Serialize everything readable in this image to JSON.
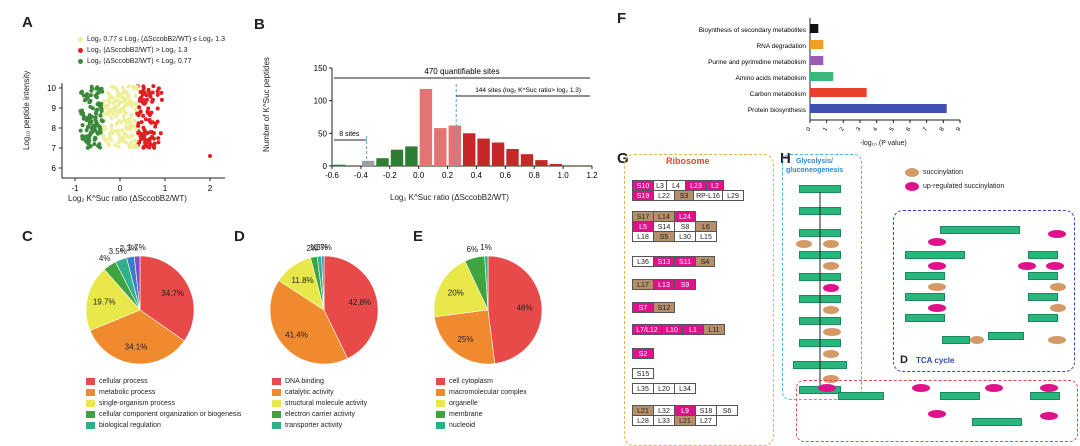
{
  "panels": {
    "A": "A",
    "B": "B",
    "C": "C",
    "D": "D",
    "E": "E",
    "F": "F",
    "G": "G",
    "H": "H"
  },
  "panelA": {
    "legend": [
      {
        "text": "Log₂ 0.77 ≤ Log₂ (ΔSccobB2/WT) ≤ Log₂ 1.3",
        "color": "#efef9a"
      },
      {
        "text": "Log₂ (ΔSccobB2/WT) > Log₂ 1.3",
        "color": "#e02020"
      },
      {
        "text": "Log₂ (ΔSccobB2/WT) < Log₂ 0.77",
        "color": "#3a8a3a"
      }
    ],
    "ylabel": "Log₁₀ peptide intensity",
    "xlabel": "Log₂ K^Suc ratio (ΔSccobB2/WT)",
    "xticks": [
      "-1",
      "0",
      "1",
      "2"
    ],
    "yticks": [
      "10",
      "9",
      "8",
      "7",
      "6"
    ]
  },
  "chart_data": [
    {
      "type": "bar",
      "title": "",
      "annotation_total": "470 quantifiable sites",
      "annotation_right": "144 sites (log₂ K^Suc ratio> log₂ 1.3)",
      "annotation_left": "8 sites",
      "xlabel": "Log₂ K^Suc ratio (ΔSccobB2/WT)",
      "ylabel": "Number of K^Suc peptides",
      "xticks": [
        "-0.6",
        "-0.4",
        "-0.2",
        "0.0",
        "0.2",
        "0.4",
        "0.6",
        "0.8",
        "1.0",
        "1.2"
      ],
      "yticks": [
        "0",
        "50",
        "100",
        "150"
      ],
      "ylim": [
        0,
        150
      ],
      "x": [
        -0.55,
        -0.45,
        -0.35,
        -0.25,
        -0.15,
        -0.05,
        0.05,
        0.15,
        0.25,
        0.35,
        0.45,
        0.55,
        0.65,
        0.75,
        0.85,
        0.95,
        1.05,
        1.15
      ],
      "values": [
        2,
        1,
        8,
        12,
        25,
        30,
        118,
        58,
        62,
        50,
        42,
        36,
        26,
        18,
        9,
        3,
        1,
        1
      ],
      "colors": [
        "#2e7d32",
        "#2e7d32",
        "#9e9e9e",
        "#2e7d32",
        "#2e7d32",
        "#2e7d32",
        "#e57373",
        "#e57373",
        "#e57373",
        "#c62828",
        "#c62828",
        "#c62828",
        "#c62828",
        "#c62828",
        "#c62828",
        "#c62828",
        "#c62828",
        "#c62828"
      ]
    },
    {
      "type": "pie",
      "name": "C",
      "labels": [
        "cellular process",
        "metabolic process",
        "single-organism process",
        "cellular component organization or biogenesis",
        "biological regulation",
        "other1",
        "other2"
      ],
      "values": [
        34.7,
        34.1,
        19.7,
        4,
        3.5,
        2.3,
        1.7
      ],
      "value_labels": [
        "34.7%",
        "34.1%",
        "19.7%",
        "4%",
        "3.5%",
        "2.3%",
        "1.7%"
      ],
      "colors": [
        "#e84a4a",
        "#f08a2e",
        "#e8e84a",
        "#3fa33f",
        "#2fb08a",
        "#3a7ec8",
        "#8a4ac8"
      ]
    },
    {
      "type": "pie",
      "name": "D",
      "labels": [
        "DNA binding",
        "catalytic activity",
        "structural molecule activity",
        "electron carrier activity",
        "transporter activity",
        "other1",
        "other2"
      ],
      "values": [
        42.8,
        41.4,
        11.8,
        2,
        1.3,
        0.7,
        0
      ],
      "value_labels": [
        "42.8%",
        "41.4%",
        "11.8%",
        "2%",
        "1.3%",
        "0.7%",
        ""
      ],
      "colors": [
        "#e84a4a",
        "#f08a2e",
        "#e8e84a",
        "#3fa33f",
        "#2fb08a",
        "#3a7ec8",
        "#8a4ac8"
      ]
    },
    {
      "type": "pie",
      "name": "E",
      "labels": [
        "cell cytoplasm",
        "macromolecular complex",
        "organelle",
        "membrane",
        "nucleoid"
      ],
      "values": [
        48,
        25,
        20,
        6,
        1
      ],
      "value_labels": [
        "48%",
        "25%",
        "20%",
        "6%",
        "1%"
      ],
      "colors": [
        "#e84a4a",
        "#f08a2e",
        "#e8e84a",
        "#3fa33f",
        "#2fb08a"
      ]
    },
    {
      "type": "bar",
      "orientation": "horizontal",
      "categories": [
        "Bioynthesis of secondary metabolites",
        "RNA degradation",
        "Purine and pyrimidine metabolism",
        "Amino acids metabolism",
        "Carbon metabolism",
        "Protein biosynthesis"
      ],
      "values": [
        0.5,
        0.8,
        0.8,
        1.4,
        3.4,
        8.2
      ],
      "colors": [
        "#111111",
        "#f0a020",
        "#9a5ab8",
        "#3ab87a",
        "#e8402a",
        "#4050b0"
      ],
      "xlabel": "-log₁₀ (P value)",
      "xticks": [
        "0",
        "1",
        "2",
        "3",
        "4",
        "5",
        "6",
        "7",
        "8",
        "9"
      ],
      "xlim": [
        0,
        9
      ]
    }
  ],
  "legendC": [
    "cellular process",
    "metabolic process",
    "single-organism process",
    "cellular component organization or biogenesis",
    "biological regulation"
  ],
  "legendD": [
    "DNA binding",
    "catalytic activity",
    "structural molecule activity",
    "electron carrier activity",
    "transporter activity"
  ],
  "legendE": [
    "cell cytoplasm",
    "macromolecular complex",
    "organelle",
    "membrane",
    "nucleoid"
  ],
  "panelG": {
    "title": "Ribosome"
  },
  "panelH": {
    "title1": "Glycolysis/",
    "title2": "gluconeogenesis",
    "legend_succ": "succinylation",
    "legend_up": "up-regulated succinylation",
    "tca": "TCA cycle",
    "tca_letter": "D"
  }
}
